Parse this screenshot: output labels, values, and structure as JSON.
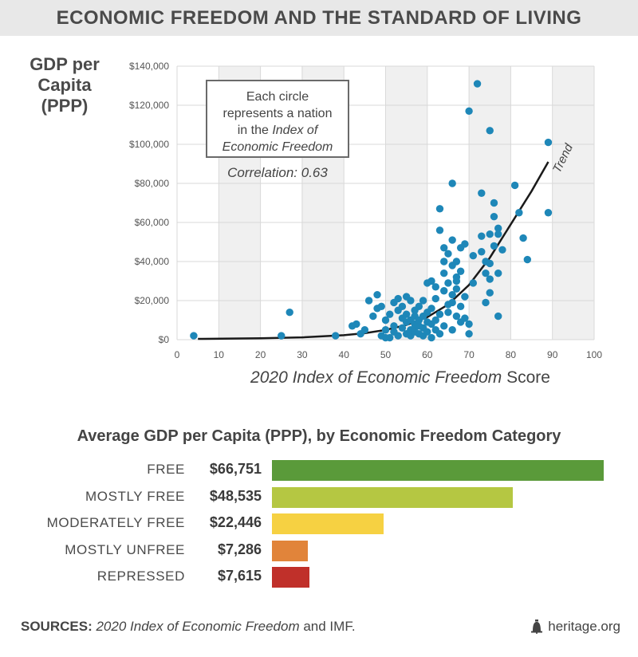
{
  "header": {
    "title": "ECONOMIC FREEDOM AND THE STANDARD OF LIVING"
  },
  "annotation": {
    "line1": "Each circle",
    "line2": "represents a nation",
    "line3_pre": "in the ",
    "line3_italic": "Index of",
    "line4_italic": "Economic Freedom",
    "correlation": "Correlation: 0.63",
    "trend_label": "Trend"
  },
  "scatter_axis": {
    "ylabel_lines": [
      "GDP per",
      "Capita",
      "(PPP)"
    ],
    "xtitle_italic": "2020 Index of Economic Freedom",
    "xtitle_rest": " Score"
  },
  "bar_section": {
    "title": "Average GDP per Capita (PPP), by Economic Freedom Category"
  },
  "footer": {
    "sources_label": "SOURCES:",
    "sources_italic": "2020 Index of Economic Freedom",
    "sources_rest": " and IMF.",
    "brand": "heritage.org"
  },
  "colors": {
    "dot": "#1e87b8",
    "trend": "#1a1a1a",
    "grid": "#d9d9d9",
    "band": "#f0f0f0",
    "free": "#5a9a3a",
    "mostly_free": "#b5c742",
    "moderately_free": "#f6d142",
    "mostly_unfree": "#e1843a",
    "repressed": "#c0302a"
  },
  "chart_data": [
    {
      "type": "scatter",
      "title": "",
      "xlabel": "2020 Index of Economic Freedom Score",
      "ylabel": "GDP per Capita (PPP)",
      "xlim": [
        0,
        100
      ],
      "ylim": [
        0,
        140000
      ],
      "x_ticks": [
        0,
        10,
        20,
        30,
        40,
        50,
        60,
        70,
        80,
        90,
        100
      ],
      "y_ticks": [
        0,
        20000,
        40000,
        60000,
        80000,
        100000,
        120000,
        140000
      ],
      "y_tick_labels": [
        "$0",
        "$20,000",
        "$40,000",
        "$60,000",
        "$80,000",
        "$100,000",
        "$120,000",
        "$140,000"
      ],
      "correlation": 0.63,
      "trend": {
        "label": "Trend",
        "points": [
          [
            5,
            400
          ],
          [
            20,
            700
          ],
          [
            30,
            1200
          ],
          [
            40,
            2300
          ],
          [
            45,
            3300
          ],
          [
            50,
            5000
          ],
          [
            55,
            7500
          ],
          [
            60,
            11500
          ],
          [
            65,
            18000
          ],
          [
            70,
            28000
          ],
          [
            75,
            42000
          ],
          [
            80,
            59000
          ],
          [
            85,
            76000
          ],
          [
            89,
            91000
          ]
        ]
      },
      "points": [
        [
          4,
          2000
        ],
        [
          25,
          2000
        ],
        [
          27,
          14000
        ],
        [
          38,
          2000
        ],
        [
          42,
          7000
        ],
        [
          43,
          8000
        ],
        [
          44,
          3000
        ],
        [
          45,
          5000
        ],
        [
          46,
          20000
        ],
        [
          47,
          12000
        ],
        [
          48,
          16000
        ],
        [
          48,
          23000
        ],
        [
          49,
          2000
        ],
        [
          49,
          17000
        ],
        [
          50,
          10000
        ],
        [
          50,
          5000
        ],
        [
          50,
          1000
        ],
        [
          51,
          13000
        ],
        [
          51,
          1000
        ],
        [
          52,
          7000
        ],
        [
          52,
          19000
        ],
        [
          52,
          4000
        ],
        [
          53,
          21000
        ],
        [
          53,
          15000
        ],
        [
          53,
          2000
        ],
        [
          54,
          11000
        ],
        [
          54,
          6000
        ],
        [
          54,
          17000
        ],
        [
          55,
          9000
        ],
        [
          55,
          3000
        ],
        [
          55,
          13000
        ],
        [
          55,
          22000
        ],
        [
          56,
          2000
        ],
        [
          56,
          5000
        ],
        [
          56,
          10000
        ],
        [
          56,
          20000
        ],
        [
          57,
          4000
        ],
        [
          57,
          8000
        ],
        [
          57,
          12000
        ],
        [
          57,
          15000
        ],
        [
          57,
          6000
        ],
        [
          58,
          3000
        ],
        [
          58,
          7000
        ],
        [
          58,
          17000
        ],
        [
          58,
          10000
        ],
        [
          59,
          2000
        ],
        [
          59,
          6000
        ],
        [
          59,
          12000
        ],
        [
          59,
          20000
        ],
        [
          60,
          29000
        ],
        [
          60,
          4000
        ],
        [
          60,
          9000
        ],
        [
          60,
          14000
        ],
        [
          61,
          1000
        ],
        [
          61,
          16000
        ],
        [
          61,
          8000
        ],
        [
          61,
          30000
        ],
        [
          62,
          5000
        ],
        [
          62,
          10000
        ],
        [
          62,
          21000
        ],
        [
          62,
          27000
        ],
        [
          63,
          56000
        ],
        [
          63,
          67000
        ],
        [
          63,
          3000
        ],
        [
          63,
          13000
        ],
        [
          64,
          47000
        ],
        [
          64,
          40000
        ],
        [
          64,
          34000
        ],
        [
          64,
          25000
        ],
        [
          64,
          7000
        ],
        [
          65,
          29000
        ],
        [
          65,
          14000
        ],
        [
          65,
          18000
        ],
        [
          65,
          44000
        ],
        [
          66,
          19000
        ],
        [
          66,
          23000
        ],
        [
          66,
          5000
        ],
        [
          66,
          51000
        ],
        [
          66,
          38000
        ],
        [
          66,
          80000
        ],
        [
          67,
          30000
        ],
        [
          67,
          40000
        ],
        [
          67,
          12000
        ],
        [
          67,
          26000
        ],
        [
          67,
          32000
        ],
        [
          68,
          17000
        ],
        [
          68,
          9000
        ],
        [
          68,
          47000
        ],
        [
          68,
          35000
        ],
        [
          69,
          22000
        ],
        [
          69,
          49000
        ],
        [
          69,
          11000
        ],
        [
          70,
          117000
        ],
        [
          70,
          3000
        ],
        [
          70,
          8000
        ],
        [
          71,
          43000
        ],
        [
          71,
          29000
        ],
        [
          72,
          131000
        ],
        [
          73,
          53000
        ],
        [
          73,
          75000
        ],
        [
          73,
          45000
        ],
        [
          74,
          40000
        ],
        [
          74,
          34000
        ],
        [
          74,
          19000
        ],
        [
          75,
          54000
        ],
        [
          75,
          39000
        ],
        [
          75,
          31000
        ],
        [
          75,
          24000
        ],
        [
          75,
          107000
        ],
        [
          76,
          70000
        ],
        [
          76,
          63000
        ],
        [
          76,
          48000
        ],
        [
          77,
          57000
        ],
        [
          77,
          54000
        ],
        [
          77,
          34000
        ],
        [
          77,
          12000
        ],
        [
          78,
          46000
        ],
        [
          81,
          79000
        ],
        [
          82,
          65000
        ],
        [
          83,
          52000
        ],
        [
          84,
          41000
        ],
        [
          89,
          101000
        ],
        [
          89,
          65000
        ]
      ]
    },
    {
      "type": "bar",
      "title": "Average GDP per Capita (PPP), by Economic Freedom Category",
      "orientation": "horizontal",
      "categories": [
        "FREE",
        "MOSTLY FREE",
        "MODERATELY FREE",
        "MOSTLY UNFREE",
        "REPRESSED"
      ],
      "values": [
        66751,
        48535,
        22446,
        7286,
        7615
      ],
      "value_labels": [
        "$66,751",
        "$48,535",
        "$22,446",
        "$7,286",
        "$7,615"
      ],
      "bar_colors": [
        "#5a9a3a",
        "#b5c742",
        "#f6d142",
        "#e1843a",
        "#c0302a"
      ]
    }
  ]
}
